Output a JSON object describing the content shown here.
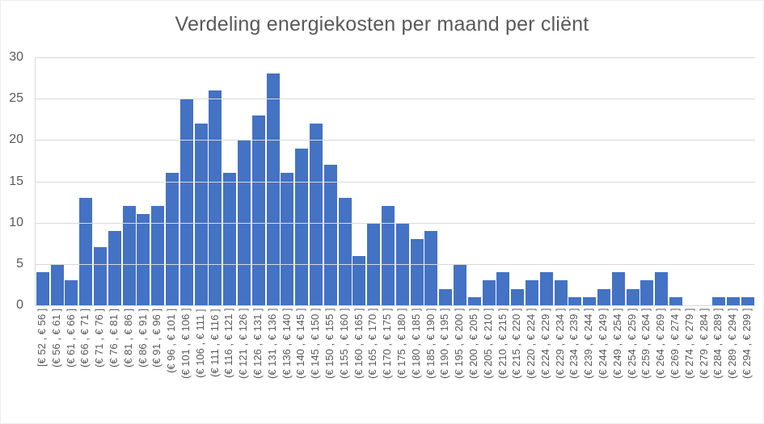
{
  "chart_data": {
    "type": "bar",
    "title": "Verdeling energiekosten per maand per cliënt",
    "xlabel": "",
    "ylabel": "",
    "ylim": [
      0,
      30
    ],
    "yticks": [
      0,
      5,
      10,
      15,
      20,
      25,
      30
    ],
    "grid": true,
    "legend": false,
    "categories": [
      "[€ 52 , € 56 ]",
      "(€ 56 , € 61 ]",
      "(€ 61 , € 66 ]",
      "(€ 66 , € 71 ]",
      "(€ 71 , € 76 ]",
      "(€ 76 , € 81 ]",
      "(€ 81 , € 86 ]",
      "(€ 86 , € 91 ]",
      "(€ 91 , € 96 ]",
      "(€ 96 , € 101 ]",
      "(€ 101 , € 106 ]",
      "(€ 106 , € 111 ]",
      "(€ 111 , € 116 ]",
      "(€ 116 , € 121 ]",
      "(€ 121 , € 126 ]",
      "(€ 126 , € 131 ]",
      "(€ 131 , € 136 ]",
      "(€ 136 , € 140 ]",
      "(€ 140 , € 145 ]",
      "(€ 145 , € 150 ]",
      "(€ 150 , € 155 ]",
      "(€ 155 , € 160 ]",
      "(€ 160 , € 165 ]",
      "(€ 165 , € 170 ]",
      "(€ 170 , € 175 ]",
      "(€ 175 , € 180 ]",
      "(€ 180 , € 185 ]",
      "(€ 185 , € 190 ]",
      "(€ 190 , € 195 ]",
      "(€ 195 , € 200 ]",
      "(€ 200 , € 205 ]",
      "(€ 205 , € 210 ]",
      "(€ 210 , € 215 ]",
      "(€ 215 , € 220 ]",
      "(€ 220 , € 224 ]",
      "(€ 224 , € 229 ]",
      "(€ 229 , € 234 ]",
      "(€ 234 , € 239 ]",
      "(€ 239 , € 244 ]",
      "(€ 244 , € 249 ]",
      "(€ 249 , € 254 ]",
      "(€ 254 , € 259 ]",
      "(€ 259 , € 264 ]",
      "(€ 264 , € 269 ]",
      "(€ 269 , € 274 ]",
      "(€ 274 , € 279 ]",
      "(€ 279 , € 284 ]",
      "(€ 284 , € 289 ]",
      "(€ 289 , € 294 ]",
      "(€ 294 , € 299 ]"
    ],
    "values": [
      4,
      5,
      3,
      13,
      7,
      9,
      12,
      11,
      12,
      16,
      25,
      22,
      26,
      16,
      20,
      23,
      28,
      16,
      19,
      22,
      17,
      13,
      6,
      10,
      12,
      10,
      8,
      9,
      2,
      5,
      1,
      3,
      4,
      2,
      3,
      4,
      3,
      1,
      1,
      2,
      4,
      2,
      3,
      4,
      1,
      0,
      0,
      1,
      1,
      1
    ],
    "colors": {
      "bar": "#4472C4",
      "gridline": "#D9D9D9",
      "axis_line": "#D9D9D9",
      "title_text": "#595959",
      "tick_text": "#595959",
      "background": "#FFFFFF"
    }
  }
}
